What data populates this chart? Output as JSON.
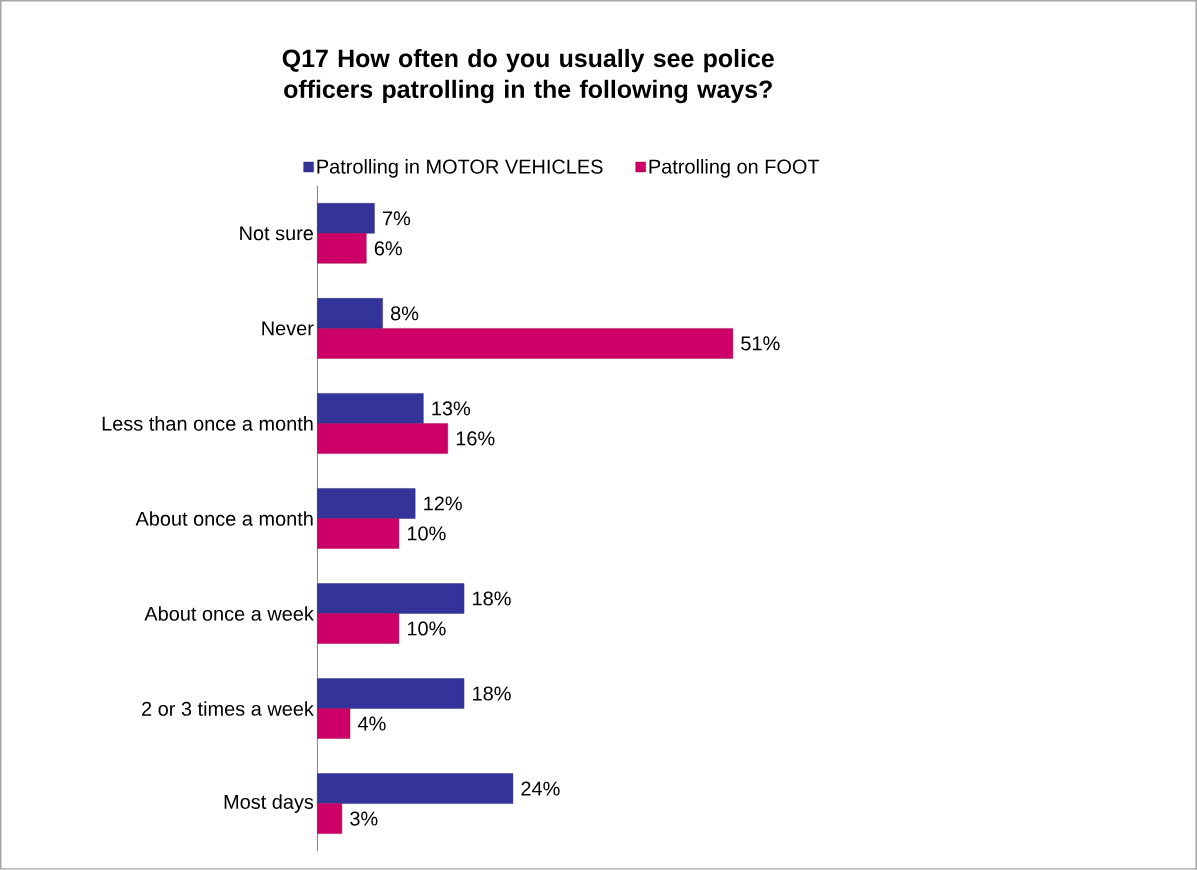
{
  "chart_data": {
    "type": "bar",
    "orientation": "horizontal",
    "title": "Q17 How often do you usually see police officers patrolling in the following ways?",
    "categories": [
      "Not sure",
      "Never",
      "Less than once a month",
      "About once a month",
      "About once a week",
      "2 or 3 times a week",
      "Most days"
    ],
    "series": [
      {
        "name": "Patrolling in MOTOR VEHICLES",
        "color": "#333399",
        "values": [
          7,
          8,
          13,
          12,
          18,
          18,
          24
        ],
        "value_labels": [
          "7%",
          "8%",
          "13%",
          "12%",
          "18%",
          "18%",
          "24%"
        ]
      },
      {
        "name": "Patrolling on FOOT",
        "color": "#cc0066",
        "values": [
          6,
          51,
          16,
          10,
          10,
          4,
          3
        ],
        "value_labels": [
          "6%",
          "51%",
          "16%",
          "10%",
          "10%",
          "4%",
          "3%"
        ]
      }
    ],
    "legend": "top"
  }
}
